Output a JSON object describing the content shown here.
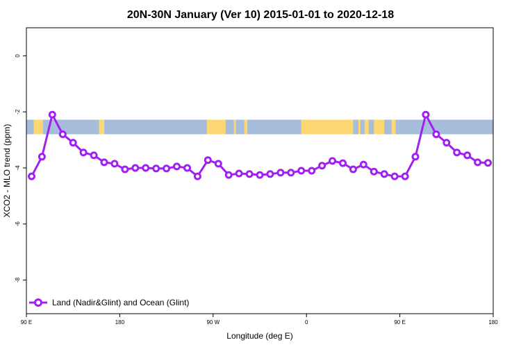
{
  "chart_data": {
    "type": "line",
    "title": "20N-30N January (Ver 10)   2015-01-01 to 2020-12-18",
    "xlabel": "Longitude (deg E)",
    "ylabel": "XCO2 - MLO trend (ppm)",
    "xlim": [
      90,
      540
    ],
    "ylim": [
      -9.2,
      1.0
    ],
    "x_ticks": [
      {
        "value": 90,
        "label": "90 E"
      },
      {
        "value": 180,
        "label": "180"
      },
      {
        "value": 270,
        "label": "90 W"
      },
      {
        "value": 360,
        "label": "0"
      },
      {
        "value": 450,
        "label": "90 E"
      },
      {
        "value": 540,
        "label": "180"
      }
    ],
    "y_ticks": [
      {
        "value": 0,
        "label": "0"
      },
      {
        "value": -2,
        "label": "-2"
      },
      {
        "value": -4,
        "label": "-4"
      },
      {
        "value": -6,
        "label": "-6"
      },
      {
        "value": -8,
        "label": "-8"
      }
    ],
    "map_band": {
      "y_top": -2.28,
      "y_bottom": -2.8,
      "ocean_color": "#a6bddb",
      "land_color": "#fdd872"
    },
    "legend": {
      "position": "bottom-left"
    },
    "series": [
      {
        "name": "Land (Nadir&Glint) and Ocean (Glint)",
        "color": "#a020f0",
        "x": [
          95,
          105,
          115,
          125,
          135,
          145,
          155,
          165,
          175,
          185,
          195,
          205,
          215,
          225,
          235,
          245,
          255,
          265,
          275,
          285,
          295,
          305,
          315,
          325,
          335,
          345,
          355,
          365,
          375,
          385,
          395,
          405,
          415,
          425,
          435,
          445,
          455,
          465,
          475,
          485,
          495,
          505,
          515,
          525,
          535
        ],
        "y": [
          -4.3,
          -3.6,
          -2.1,
          -2.8,
          -3.1,
          -3.45,
          -3.55,
          -3.8,
          -3.85,
          -4.05,
          -4.0,
          -4.0,
          -4.02,
          -4.02,
          -3.95,
          -4.0,
          -4.3,
          -3.72,
          -3.85,
          -4.25,
          -4.2,
          -4.22,
          -4.25,
          -4.22,
          -4.17,
          -4.17,
          -4.1,
          -4.1,
          -3.92,
          -3.75,
          -3.83,
          -4.05,
          -3.88,
          -4.13,
          -4.22,
          -4.3,
          -4.3,
          -3.6,
          -2.1,
          -2.8,
          -3.1,
          -3.45,
          -3.55,
          -3.8,
          -3.82
        ]
      }
    ]
  }
}
